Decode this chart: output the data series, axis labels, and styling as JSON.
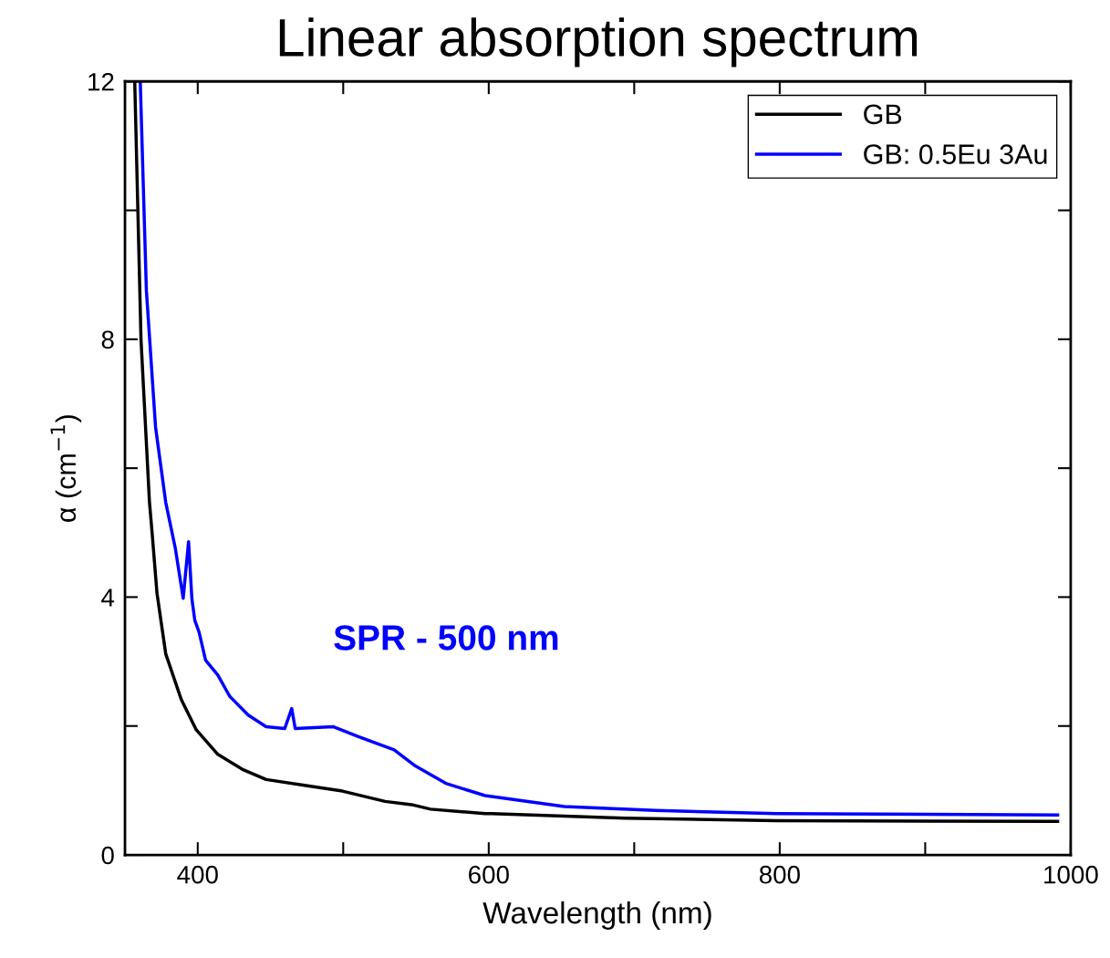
{
  "chart_data": {
    "type": "line",
    "title": "Linear absorption spectrum",
    "xlabel": "Wavelength (nm)",
    "ylabel": "α (cm$^{−1}$)",
    "xlim": [
      350,
      1000
    ],
    "ylim": [
      0,
      12
    ],
    "xticks": [
      400,
      {
        "value": 500,
        "label": null
      },
      600,
      {
        "value": 700,
        "label": null
      },
      800,
      {
        "value": 900,
        "label": null
      },
      1000
    ],
    "yticks": [
      0,
      {
        "value": 2,
        "label": null
      },
      4,
      {
        "value": 6,
        "label": null
      },
      8,
      {
        "value": 10,
        "label": null
      },
      12
    ],
    "grid": false,
    "legend": "top right",
    "marker": "none",
    "line_style": "solid",
    "annotations": [
      "SPR - 500 nm"
    ],
    "series": [
      {
        "name": "GB",
        "color": "#000000",
        "x": [
          356.7,
          361,
          366.8,
          368.7,
          372,
          378,
          388.7,
          399,
          413.8,
          430.5,
          447,
          476.5,
          499.5,
          528.8,
          547,
          560,
          597.5,
          602,
          693.6,
          798,
          991
        ],
        "values": [
          12,
          8,
          5.48,
          4.98,
          4.06,
          3.12,
          2.41,
          1.94,
          1.56,
          1.33,
          1.17,
          1.07,
          0.99,
          0.83,
          0.78,
          0.71,
          0.64,
          0.64,
          0.57,
          0.53,
          0.52
        ]
      },
      {
        "name": "GB: 0.5Eu 3Au",
        "color": "#0000ff",
        "x": [
          360.5,
          364.7,
          371,
          378,
          384.5,
          390,
          393.7,
          396,
          398,
          401,
          405.4,
          413.8,
          422,
          434.7,
          447,
          459.8,
          464.6,
          467,
          493,
          510,
          535,
          549.6,
          570.5,
          597.5,
          652,
          714.5,
          798,
          991
        ],
        "values": [
          12,
          8.76,
          6.64,
          5.47,
          4.77,
          3.98,
          4.86,
          3.97,
          3.64,
          3.45,
          3.02,
          2.79,
          2.46,
          2.17,
          1.99,
          1.96,
          2.27,
          1.96,
          1.99,
          1.84,
          1.63,
          1.38,
          1.11,
          0.92,
          0.75,
          0.69,
          0.64,
          0.62
        ]
      }
    ]
  }
}
